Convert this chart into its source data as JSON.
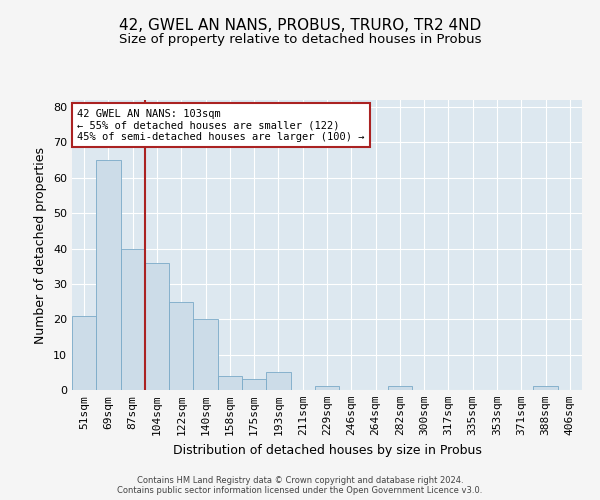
{
  "title": "42, GWEL AN NANS, PROBUS, TRURO, TR2 4ND",
  "subtitle": "Size of property relative to detached houses in Probus",
  "xlabel": "Distribution of detached houses by size in Probus",
  "ylabel": "Number of detached properties",
  "categories": [
    "51sqm",
    "69sqm",
    "87sqm",
    "104sqm",
    "122sqm",
    "140sqm",
    "158sqm",
    "175sqm",
    "193sqm",
    "211sqm",
    "229sqm",
    "246sqm",
    "264sqm",
    "282sqm",
    "300sqm",
    "317sqm",
    "335sqm",
    "353sqm",
    "371sqm",
    "388sqm",
    "406sqm"
  ],
  "values": [
    21,
    65,
    40,
    36,
    25,
    20,
    4,
    3,
    5,
    0,
    1,
    0,
    0,
    1,
    0,
    0,
    0,
    0,
    0,
    1,
    0
  ],
  "bar_color": "#ccdce8",
  "bar_edge_color": "#7aaac8",
  "vline_x_index": 2.5,
  "vline_color": "#aa2222",
  "annotation_text": "42 GWEL AN NANS: 103sqm\n← 55% of detached houses are smaller (122)\n45% of semi-detached houses are larger (100) →",
  "annotation_box_facecolor": "#ffffff",
  "annotation_box_edgecolor": "#aa2222",
  "ylim": [
    0,
    82
  ],
  "yticks": [
    0,
    10,
    20,
    30,
    40,
    50,
    60,
    70,
    80
  ],
  "plot_bg_color": "#dde8f0",
  "fig_bg_color": "#f5f5f5",
  "grid_color": "#ffffff",
  "footer_line1": "Contains HM Land Registry data © Crown copyright and database right 2024.",
  "footer_line2": "Contains public sector information licensed under the Open Government Licence v3.0.",
  "title_fontsize": 11,
  "subtitle_fontsize": 9.5,
  "ylabel_fontsize": 9,
  "xlabel_fontsize": 9,
  "tick_fontsize": 8,
  "annotation_fontsize": 7.5,
  "footer_fontsize": 6
}
